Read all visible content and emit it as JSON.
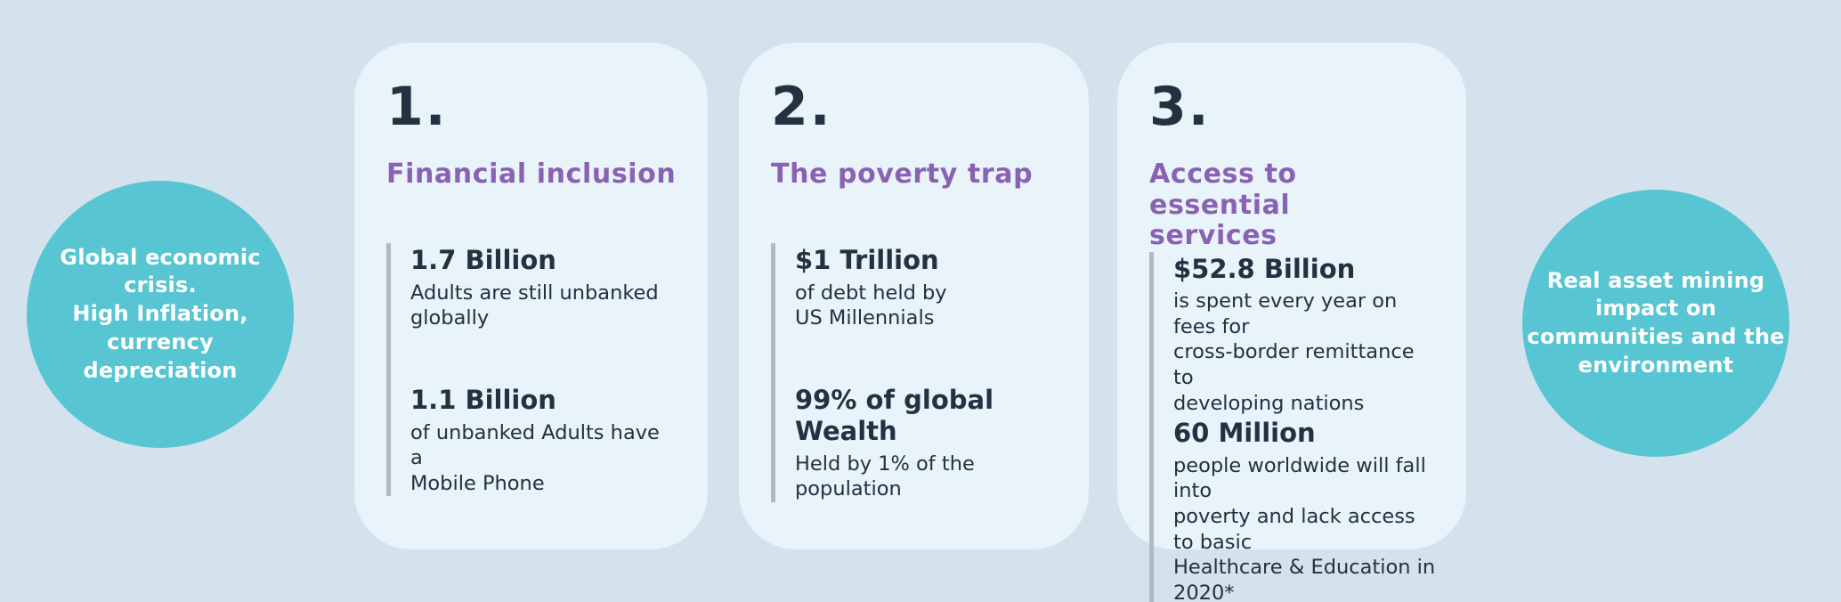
{
  "colors": {
    "background": "#d4e2ee",
    "card_bg": "#e8f3fa",
    "circle_bg": "#58c5d2",
    "circle_text": "#ffffff",
    "heading_purple": "#8a62b2",
    "text_dark": "#233140",
    "stat_bar_gray": "#b0bac1"
  },
  "left_circle": {
    "text": "Global economic\ncrisis.\nHigh Inflation,\ncurrency\ndepreciation"
  },
  "right_circle": {
    "text": "Real asset  mining\nimpact on\ncommunities and the\nenvironment"
  },
  "cards": [
    {
      "number": "1.",
      "title": "Financial inclusion",
      "stats": [
        {
          "value": "1.7 Billion",
          "description": "Adults are still unbanked\nglobally"
        },
        {
          "value": "1.1 Billion",
          "description": "of unbanked Adults have a\nMobile Phone"
        }
      ]
    },
    {
      "number": "2.",
      "title": "The poverty trap",
      "stats": [
        {
          "value": "$1 Trillion",
          "description": "of debt held by\nUS Millennials"
        },
        {
          "value": "99% of global Wealth",
          "description": "Held by 1% of the\npopulation"
        }
      ]
    },
    {
      "number": "3.",
      "title": "Access to essential\nservices",
      "stats": [
        {
          "value": "$52.8 Billion",
          "description": "is spent every year on fees for\ncross-border remittance to\ndeveloping nations"
        },
        {
          "value": "60 Million",
          "description": "people worldwide will fall into\npoverty and lack access to basic\nHealthcare & Education in 2020*"
        }
      ]
    }
  ]
}
